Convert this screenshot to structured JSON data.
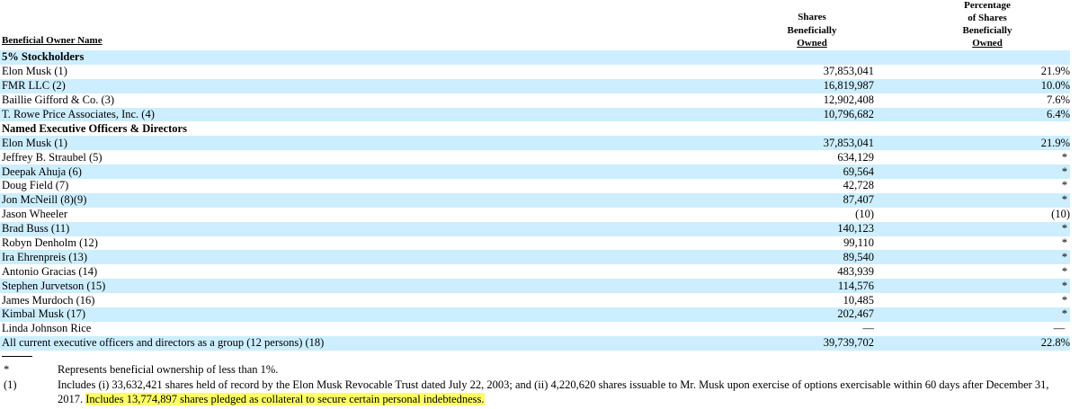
{
  "header": {
    "owner_label": "Beneficial Owner Name",
    "shares_line1": "Shares",
    "shares_line2": "Beneficially",
    "shares_line3": "Owned",
    "pct_line1": "Percentage",
    "pct_line2": "of Shares",
    "pct_line3": "Beneficially",
    "pct_line4": "Owned"
  },
  "rows": [
    {
      "name": "5% Stockholders",
      "shares": "",
      "pct": "",
      "section": true
    },
    {
      "name": "Elon Musk (1)",
      "shares": "37,853,041",
      "pct": "21.9%"
    },
    {
      "name": "FMR LLC (2)",
      "shares": "16,819,987",
      "pct": "10.0%"
    },
    {
      "name": "Baillie Gifford & Co. (3)",
      "shares": "12,902,408",
      "pct": "7.6%"
    },
    {
      "name": "T. Rowe Price Associates, Inc. (4)",
      "shares": "10,796,682",
      "pct": "6.4%"
    },
    {
      "name": "Named Executive Officers & Directors",
      "shares": "",
      "pct": "",
      "section": true
    },
    {
      "name": "Elon Musk (1)",
      "shares": "37,853,041",
      "pct": "21.9%"
    },
    {
      "name": "Jeffrey B. Straubel (5)",
      "shares": "634,129",
      "pct": "*"
    },
    {
      "name": "Deepak Ahuja (6)",
      "shares": "69,564",
      "pct": "*"
    },
    {
      "name": "Doug Field (7)",
      "shares": "42,728",
      "pct": "*"
    },
    {
      "name": "Jon McNeill (8)(9)",
      "shares": "87,407",
      "pct": "*"
    },
    {
      "name": "Jason Wheeler",
      "shares": "(10)",
      "pct": "(10)"
    },
    {
      "name": "Brad Buss (11)",
      "shares": "140,123",
      "pct": "*"
    },
    {
      "name": "Robyn Denholm (12)",
      "shares": "99,110",
      "pct": "*"
    },
    {
      "name": "Ira Ehrenpreis (13)",
      "shares": "89,540",
      "pct": "*"
    },
    {
      "name": "Antonio Gracias (14)",
      "shares": "483,939",
      "pct": "*"
    },
    {
      "name": "Stephen Jurvetson (15)",
      "shares": "114,576",
      "pct": "*"
    },
    {
      "name": "James Murdoch (16)",
      "shares": "10,485",
      "pct": "*"
    },
    {
      "name": "Kimbal Musk (17)",
      "shares": "202,467",
      "pct": "*"
    },
    {
      "name": "Linda Johnson Rice",
      "shares": "—",
      "pct": "—"
    },
    {
      "name": "All current executive officers and directors as a group (12 persons) (18)",
      "shares": "39,739,702",
      "pct": "22.8%"
    }
  ],
  "footnotes": {
    "asterisk_mark": "*",
    "asterisk_text": "Represents beneficial ownership of less than 1%.",
    "note1_mark": "(1)",
    "note1_text": "Includes (i) 33,632,421 shares held of record by the Elon Musk Revocable Trust dated July 22, 2003; and (ii) 4,220,620 shares issuable to Mr. Musk upon exercise of options exercisable within 60 days after December 31, 2017.",
    "note1_highlight": "Includes 13,774,897 shares pledged as collateral to secure certain personal indebtedness."
  },
  "colors": {
    "row_shade": "#cceeff",
    "highlight": "#ffff66"
  }
}
